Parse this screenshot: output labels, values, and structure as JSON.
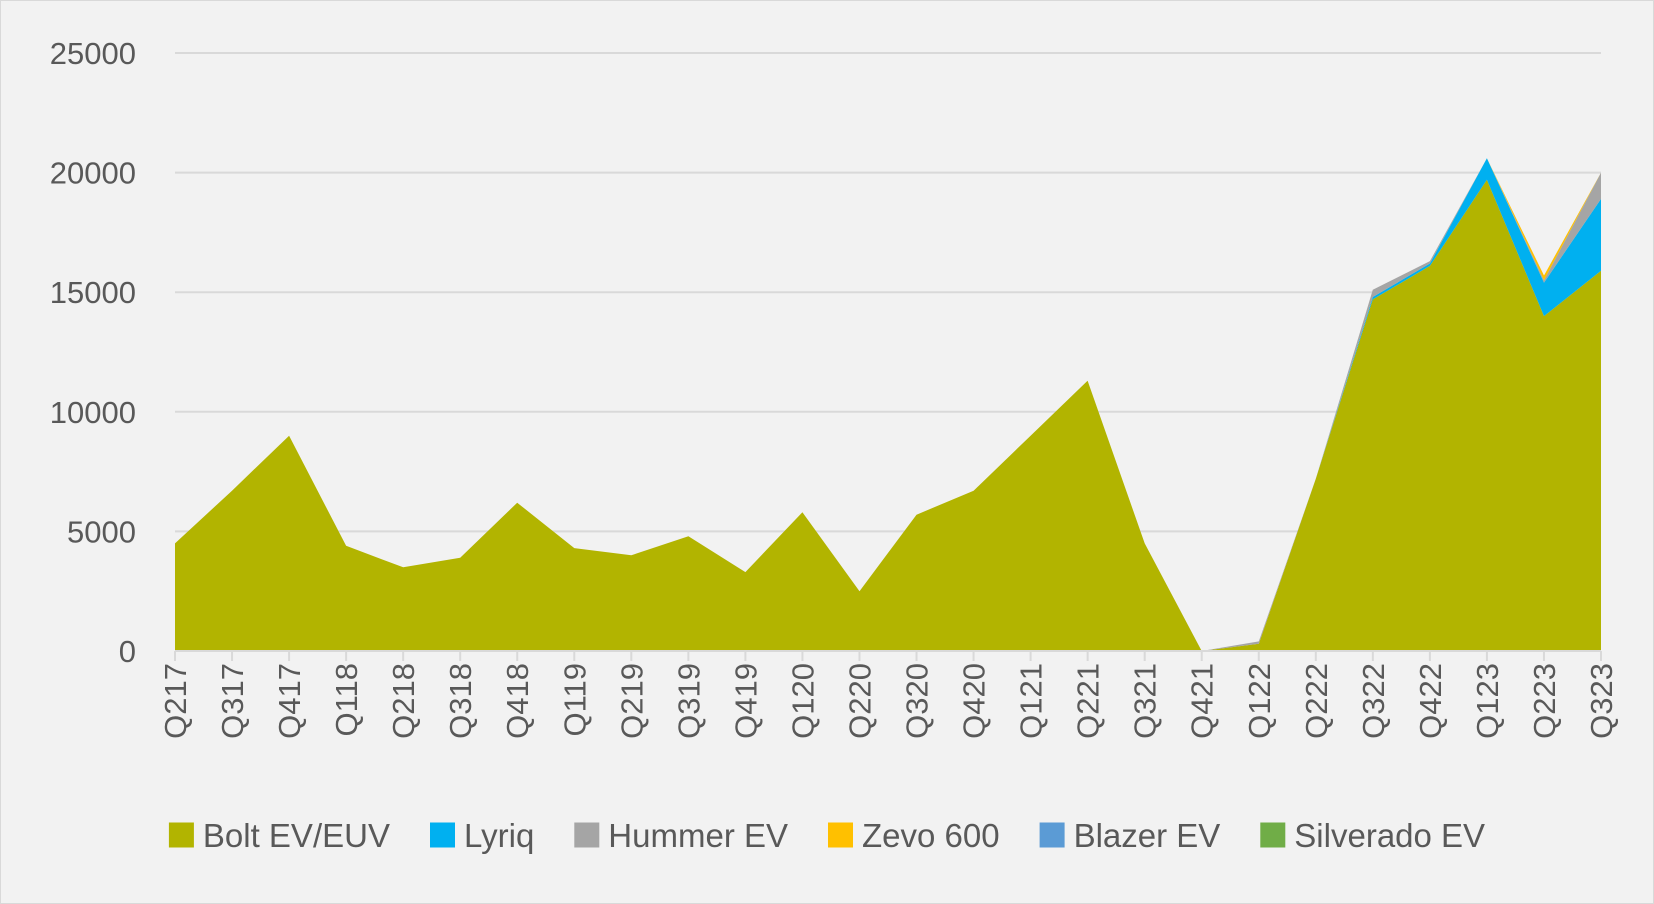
{
  "chart_data": {
    "type": "area",
    "stacked": true,
    "title": "",
    "xlabel": "",
    "ylabel": "",
    "ylim": [
      0,
      25000
    ],
    "yticks": [
      0,
      5000,
      10000,
      15000,
      20000,
      25000
    ],
    "grid": true,
    "legend_position": "bottom",
    "categories": [
      "Q217",
      "Q317",
      "Q417",
      "Q118",
      "Q218",
      "Q318",
      "Q418",
      "Q119",
      "Q219",
      "Q319",
      "Q419",
      "Q120",
      "Q220",
      "Q320",
      "Q420",
      "Q121",
      "Q221",
      "Q321",
      "Q421",
      "Q122",
      "Q222",
      "Q322",
      "Q422",
      "Q123",
      "Q223",
      "Q323"
    ],
    "series": [
      {
        "name": "Bolt EV/EUV",
        "color": "#b2b400",
        "values": [
          4500,
          6700,
          9000,
          4400,
          3500,
          3900,
          6200,
          4300,
          4000,
          4800,
          3300,
          5800,
          2500,
          5700,
          6700,
          9000,
          11300,
          4500,
          0,
          300,
          7200,
          14700,
          16100,
          19700,
          14000,
          15900
        ]
      },
      {
        "name": "Lyriq",
        "color": "#00b0f0",
        "values": [
          0,
          0,
          0,
          0,
          0,
          0,
          0,
          0,
          0,
          0,
          0,
          0,
          0,
          0,
          0,
          0,
          0,
          0,
          0,
          0,
          0,
          100,
          100,
          900,
          1400,
          3000
        ]
      },
      {
        "name": "Hummer EV",
        "color": "#a5a5a5",
        "values": [
          0,
          0,
          0,
          0,
          0,
          0,
          0,
          0,
          0,
          0,
          0,
          0,
          0,
          0,
          0,
          0,
          0,
          0,
          0,
          100,
          0,
          300,
          100,
          0,
          100,
          1100
        ]
      },
      {
        "name": "Zevo 600",
        "color": "#ffc000",
        "values": [
          0,
          0,
          0,
          0,
          0,
          0,
          0,
          0,
          0,
          0,
          0,
          0,
          0,
          0,
          0,
          0,
          0,
          0,
          0,
          0,
          0,
          0,
          0,
          0,
          200,
          0
        ]
      },
      {
        "name": "Blazer EV",
        "color": "#5b9bd5",
        "values": [
          0,
          0,
          0,
          0,
          0,
          0,
          0,
          0,
          0,
          0,
          0,
          0,
          0,
          0,
          0,
          0,
          0,
          0,
          0,
          0,
          0,
          0,
          0,
          0,
          0,
          0
        ]
      },
      {
        "name": "Silverado EV",
        "color": "#70ad47",
        "values": [
          0,
          0,
          0,
          0,
          0,
          0,
          0,
          0,
          0,
          0,
          0,
          0,
          0,
          0,
          0,
          0,
          0,
          0,
          0,
          0,
          0,
          0,
          0,
          0,
          0,
          0
        ]
      }
    ]
  },
  "colors": {
    "background": "#f2f2f2",
    "gridline": "#d9d9d9",
    "text": "#595959"
  }
}
